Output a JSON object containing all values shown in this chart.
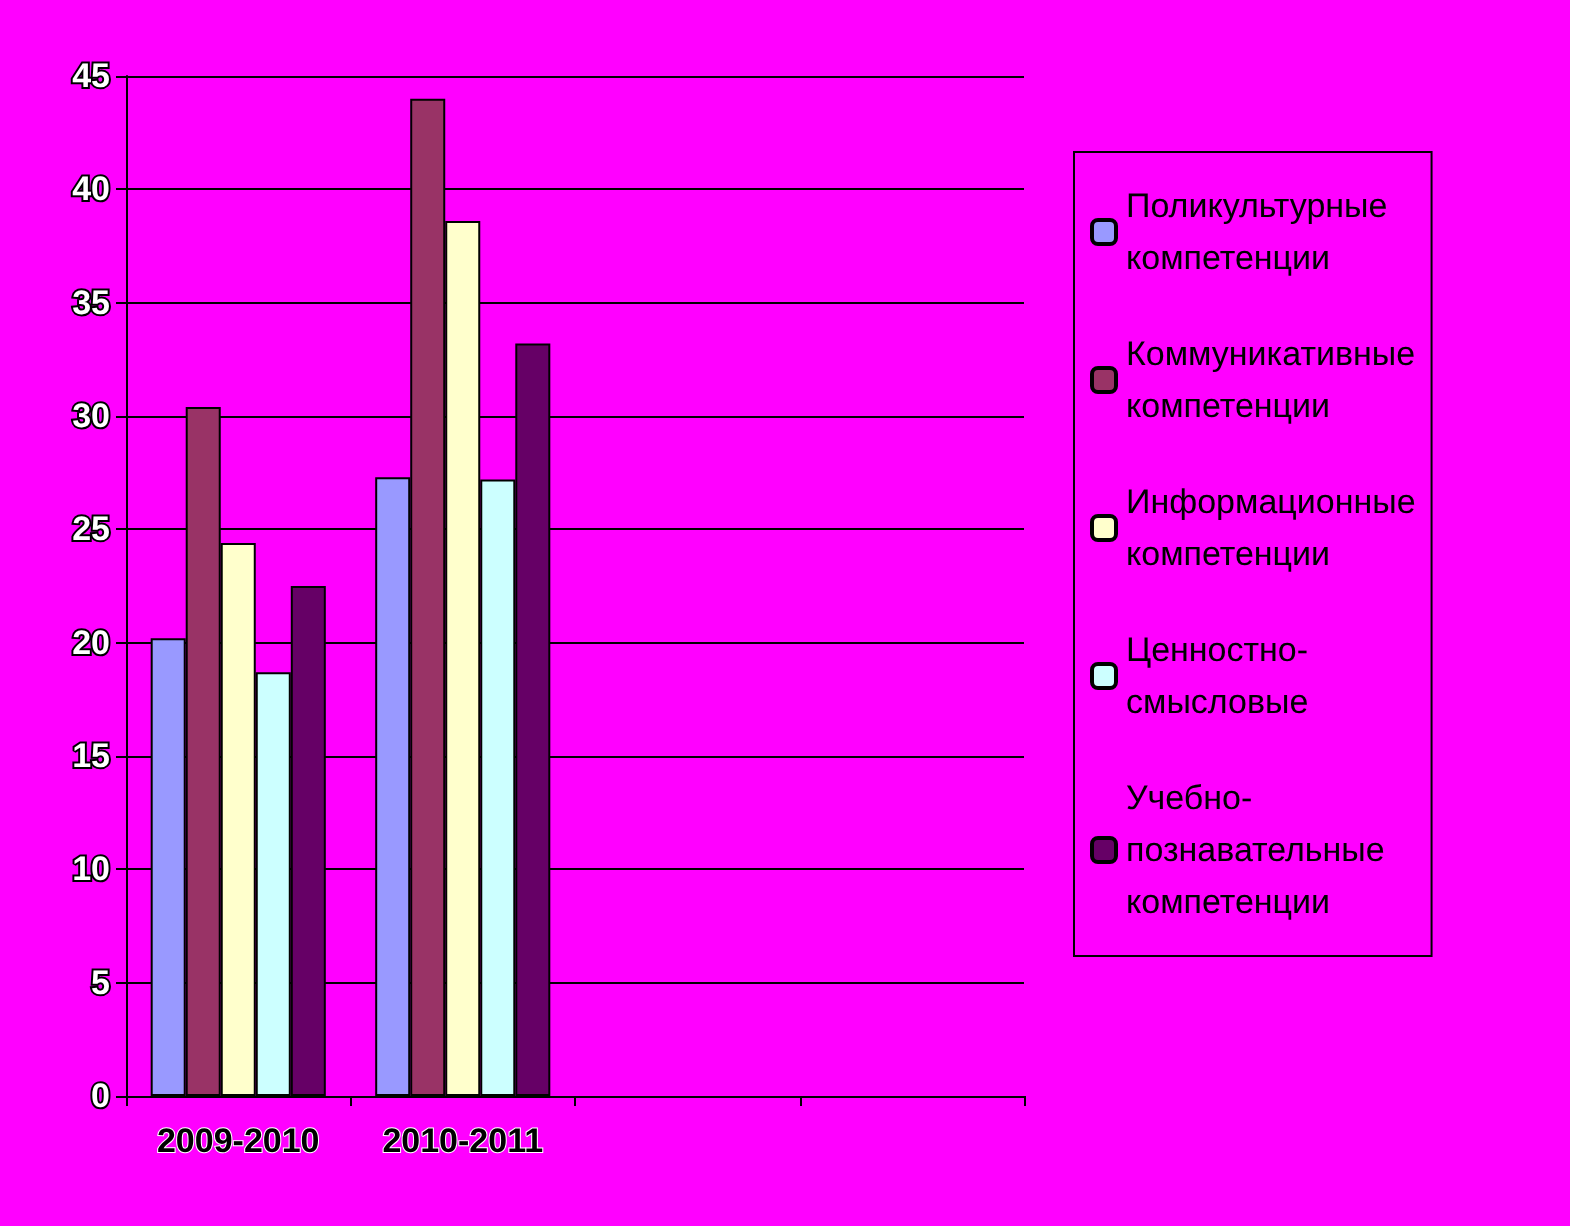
{
  "chart_data": {
    "type": "bar",
    "categories": [
      "2009-2010",
      "2010-2011",
      null,
      null
    ],
    "series": [
      {
        "name": "Поликультурные компетенции",
        "color": "#9999ff",
        "values": [
          20.2,
          27.3,
          null,
          null
        ]
      },
      {
        "name": "Коммуникативные компетенции",
        "color": "#993366",
        "values": [
          30.4,
          44,
          null,
          null
        ]
      },
      {
        "name": "Информационные компетенции",
        "color": "#ffffcc",
        "values": [
          24.4,
          38.6,
          null,
          null
        ]
      },
      {
        "name": "Ценностно-смысловые",
        "color": "#ccffff",
        "values": [
          18.7,
          27.2,
          null,
          null
        ]
      },
      {
        "name": "Учебно-познавательные компетенции",
        "color": "#660066",
        "values": [
          22.5,
          33.2,
          null,
          null
        ]
      }
    ],
    "ylim": [
      0,
      45
    ],
    "yticks": [
      0,
      5,
      10,
      15,
      20,
      25,
      30,
      35,
      40,
      45
    ],
    "grid": "y",
    "legend": "right"
  }
}
